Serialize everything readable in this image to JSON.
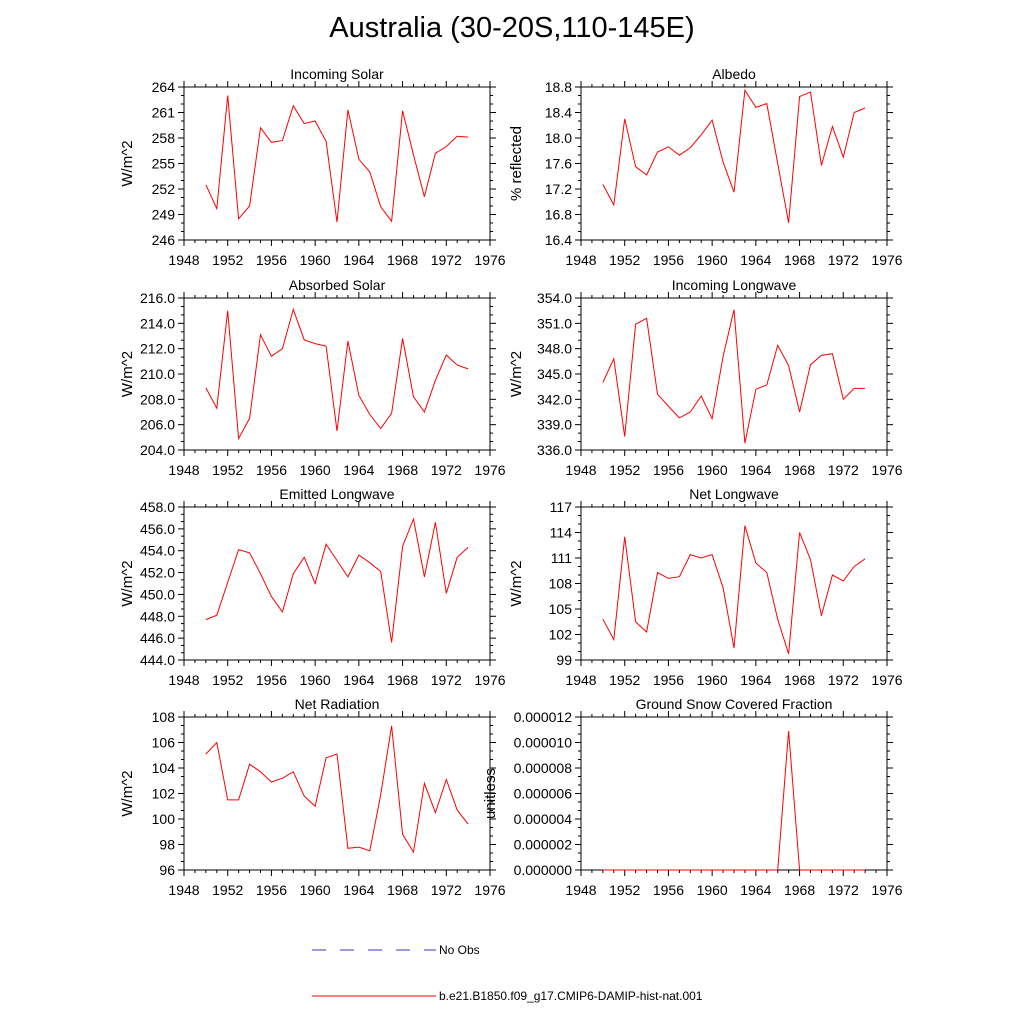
{
  "page": {
    "title": "Australia (30-20S,110-145E)"
  },
  "colors": {
    "model_line": "#ff0000",
    "obs_line": "#3333cc",
    "axis": "#000000"
  },
  "legend": {
    "obs_label": "No Obs",
    "model_label": "b.e21.B1850.f09_g17.CMIP6-DAMIP-hist-nat.001"
  },
  "chart_data": [
    {
      "type": "line",
      "title": "Incoming Solar",
      "ylabel": "W/m^2",
      "xlim": [
        1948,
        1976
      ],
      "ylim": [
        246,
        264
      ],
      "xticks": [
        "1948",
        "1952",
        "1956",
        "1960",
        "1964",
        "1968",
        "1972",
        "1976"
      ],
      "yticks": [
        "246",
        "249",
        "252",
        "255",
        "258",
        "261",
        "264"
      ],
      "x": [
        1950,
        1951,
        1952,
        1953,
        1954,
        1955,
        1956,
        1957,
        1958,
        1959,
        1960,
        1961,
        1962,
        1963,
        1964,
        1965,
        1966,
        1967,
        1968,
        1969,
        1970,
        1971,
        1972,
        1973,
        1974
      ],
      "series": [
        {
          "name": "b.e21.B1850.f09_g17.CMIP6-DAMIP-hist-nat.001",
          "values": [
            252.5,
            249.7,
            263.0,
            248.5,
            250.0,
            259.2,
            257.5,
            257.7,
            261.8,
            259.7,
            260.0,
            257.6,
            248.1,
            261.3,
            255.5,
            254.0,
            249.9,
            248.2,
            261.2,
            256.0,
            251.1,
            256.2,
            257.0,
            258.2,
            258.1
          ]
        }
      ]
    },
    {
      "type": "line",
      "title": "Albedo",
      "ylabel": "% reflected",
      "xlim": [
        1948,
        1976
      ],
      "ylim": [
        16.4,
        18.8
      ],
      "xticks": [
        "1948",
        "1952",
        "1956",
        "1960",
        "1964",
        "1968",
        "1972",
        "1976"
      ],
      "yticks": [
        "16.4",
        "16.8",
        "17.2",
        "17.6",
        "18.0",
        "18.4",
        "18.8"
      ],
      "x": [
        1950,
        1951,
        1952,
        1953,
        1954,
        1955,
        1956,
        1957,
        1958,
        1959,
        1960,
        1961,
        1962,
        1963,
        1964,
        1965,
        1966,
        1967,
        1968,
        1969,
        1970,
        1971,
        1972,
        1973,
        1974
      ],
      "series": [
        {
          "name": "b.e21.B1850.f09_g17.CMIP6-DAMIP-hist-nat.001",
          "values": [
            17.27,
            16.95,
            18.3,
            17.55,
            17.42,
            17.78,
            17.86,
            17.73,
            17.85,
            18.05,
            18.28,
            17.62,
            17.15,
            18.75,
            18.48,
            18.54,
            17.6,
            16.67,
            18.65,
            18.72,
            17.57,
            18.18,
            17.7,
            18.4,
            18.47
          ]
        }
      ]
    },
    {
      "type": "line",
      "title": "Absorbed Solar",
      "ylabel": "W/m^2",
      "xlim": [
        1948,
        1976
      ],
      "ylim": [
        204.0,
        216.0
      ],
      "xticks": [
        "1948",
        "1952",
        "1956",
        "1960",
        "1964",
        "1968",
        "1972",
        "1976"
      ],
      "yticks": [
        "204.0",
        "206.0",
        "208.0",
        "210.0",
        "212.0",
        "214.0",
        "216.0"
      ],
      "x": [
        1950,
        1951,
        1952,
        1953,
        1954,
        1955,
        1956,
        1957,
        1958,
        1959,
        1960,
        1961,
        1962,
        1963,
        1964,
        1965,
        1966,
        1967,
        1968,
        1969,
        1970,
        1971,
        1972,
        1973,
        1974
      ],
      "series": [
        {
          "name": "b.e21.B1850.f09_g17.CMIP6-DAMIP-hist-nat.001",
          "values": [
            208.9,
            207.3,
            215.0,
            204.9,
            206.5,
            213.1,
            211.4,
            212.0,
            215.1,
            212.7,
            212.4,
            212.2,
            205.5,
            212.6,
            208.3,
            206.8,
            205.7,
            206.9,
            212.8,
            208.2,
            207.0,
            209.5,
            211.5,
            210.7,
            210.4
          ]
        }
      ]
    },
    {
      "type": "line",
      "title": "Incoming Longwave",
      "ylabel": "W/m^2",
      "xlim": [
        1948,
        1976
      ],
      "ylim": [
        336.0,
        354.0
      ],
      "xticks": [
        "1948",
        "1952",
        "1956",
        "1960",
        "1964",
        "1968",
        "1972",
        "1976"
      ],
      "yticks": [
        "336.0",
        "339.0",
        "342.0",
        "345.0",
        "348.0",
        "351.0",
        "354.0"
      ],
      "x": [
        1950,
        1951,
        1952,
        1953,
        1954,
        1955,
        1956,
        1957,
        1958,
        1959,
        1960,
        1961,
        1962,
        1963,
        1964,
        1965,
        1966,
        1967,
        1968,
        1969,
        1970,
        1971,
        1972,
        1973,
        1974
      ],
      "series": [
        {
          "name": "b.e21.B1850.f09_g17.CMIP6-DAMIP-hist-nat.001",
          "values": [
            344.0,
            346.8,
            337.6,
            350.9,
            351.6,
            342.6,
            341.2,
            339.8,
            340.5,
            342.4,
            339.7,
            347.1,
            352.6,
            336.8,
            343.2,
            343.7,
            348.4,
            346.0,
            340.5,
            346.1,
            347.2,
            347.4,
            342.0,
            343.3,
            343.3
          ]
        }
      ]
    },
    {
      "type": "line",
      "title": "Emitted Longwave",
      "ylabel": "W/m^2",
      "xlim": [
        1948,
        1976
      ],
      "ylim": [
        444.0,
        458.0
      ],
      "xticks": [
        "1948",
        "1952",
        "1956",
        "1960",
        "1964",
        "1968",
        "1972",
        "1976"
      ],
      "yticks": [
        "444.0",
        "446.0",
        "448.0",
        "450.0",
        "452.0",
        "454.0",
        "456.0",
        "458.0"
      ],
      "x": [
        1950,
        1951,
        1952,
        1953,
        1954,
        1955,
        1956,
        1957,
        1958,
        1959,
        1960,
        1961,
        1962,
        1963,
        1964,
        1965,
        1966,
        1967,
        1968,
        1969,
        1970,
        1971,
        1972,
        1973,
        1974
      ],
      "series": [
        {
          "name": "b.e21.B1850.f09_g17.CMIP6-DAMIP-hist-nat.001",
          "values": [
            447.7,
            448.1,
            451.1,
            454.1,
            453.8,
            451.9,
            449.8,
            448.4,
            451.9,
            453.4,
            451.0,
            454.6,
            453.1,
            451.6,
            453.6,
            452.9,
            452.1,
            445.6,
            454.4,
            456.9,
            451.6,
            456.6,
            450.1,
            453.4,
            454.3
          ]
        }
      ]
    },
    {
      "type": "line",
      "title": "Net Longwave",
      "ylabel": "W/m^2",
      "xlim": [
        1948,
        1976
      ],
      "ylim": [
        99,
        117
      ],
      "xticks": [
        "1948",
        "1952",
        "1956",
        "1960",
        "1964",
        "1968",
        "1972",
        "1976"
      ],
      "yticks": [
        "99",
        "102",
        "105",
        "108",
        "111",
        "114",
        "117"
      ],
      "x": [
        1950,
        1951,
        1952,
        1953,
        1954,
        1955,
        1956,
        1957,
        1958,
        1959,
        1960,
        1961,
        1962,
        1963,
        1964,
        1965,
        1966,
        1967,
        1968,
        1969,
        1970,
        1971,
        1972,
        1973,
        1974
      ],
      "series": [
        {
          "name": "b.e21.B1850.f09_g17.CMIP6-DAMIP-hist-nat.001",
          "values": [
            103.8,
            101.4,
            113.5,
            103.5,
            102.3,
            109.3,
            108.6,
            108.8,
            111.4,
            111.0,
            111.4,
            107.5,
            100.4,
            114.8,
            110.4,
            109.3,
            103.8,
            99.7,
            114.0,
            110.8,
            104.2,
            109.0,
            108.3,
            110.0,
            110.9
          ]
        }
      ]
    },
    {
      "type": "line",
      "title": "Net Radiation",
      "ylabel": "W/m^2",
      "xlim": [
        1948,
        1976
      ],
      "ylim": [
        96,
        108
      ],
      "xticks": [
        "1948",
        "1952",
        "1956",
        "1960",
        "1964",
        "1968",
        "1972",
        "1976"
      ],
      "yticks": [
        "96",
        "98",
        "100",
        "102",
        "104",
        "106",
        "108"
      ],
      "x": [
        1950,
        1951,
        1952,
        1953,
        1954,
        1955,
        1956,
        1957,
        1958,
        1959,
        1960,
        1961,
        1962,
        1963,
        1964,
        1965,
        1966,
        1967,
        1968,
        1969,
        1970,
        1971,
        1972,
        1973,
        1974
      ],
      "series": [
        {
          "name": "b.e21.B1850.f09_g17.CMIP6-DAMIP-hist-nat.001",
          "values": [
            105.1,
            106.0,
            101.5,
            101.5,
            104.3,
            103.7,
            102.9,
            103.2,
            103.7,
            101.8,
            101.0,
            104.8,
            105.1,
            97.7,
            97.8,
            97.5,
            101.9,
            107.3,
            98.8,
            97.4,
            102.8,
            100.5,
            103.1,
            100.7,
            99.6
          ]
        }
      ]
    },
    {
      "type": "line",
      "title": "Ground Snow Covered Fraction",
      "ylabel": "unitless",
      "xlim": [
        1948,
        1976
      ],
      "ylim": [
        0.0,
        1.2e-05
      ],
      "xticks": [
        "1948",
        "1952",
        "1956",
        "1960",
        "1964",
        "1968",
        "1972",
        "1976"
      ],
      "yticks": [
        "0.000000",
        "0.000002",
        "0.000004",
        "0.000006",
        "0.000008",
        "0.000010",
        "0.000012"
      ],
      "x": [
        1950,
        1951,
        1952,
        1953,
        1954,
        1955,
        1956,
        1957,
        1958,
        1959,
        1960,
        1961,
        1962,
        1963,
        1964,
        1965,
        1966,
        1967,
        1968,
        1969,
        1970,
        1971,
        1972,
        1973,
        1974
      ],
      "series": [
        {
          "name": "b.e21.B1850.f09_g17.CMIP6-DAMIP-hist-nat.001",
          "values": [
            0,
            0,
            0,
            0,
            0,
            0,
            0,
            0,
            0,
            0,
            0,
            0,
            0,
            0,
            0,
            0,
            0,
            1.09e-05,
            0,
            0,
            0,
            0,
            0,
            0,
            0
          ]
        }
      ]
    }
  ]
}
